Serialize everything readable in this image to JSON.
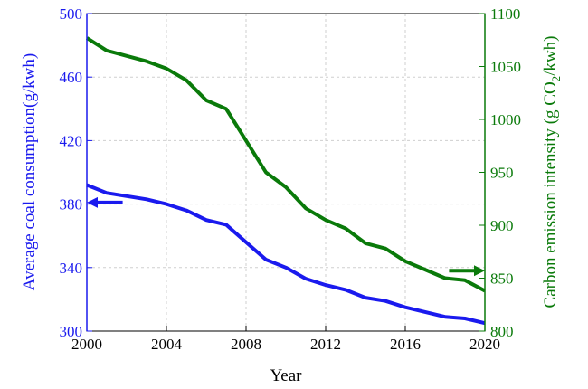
{
  "chart_data": {
    "type": "line",
    "xlabel": "Year",
    "ylabel_left": "Average coal consumption(g/kwh)",
    "ylabel_right_prefix": "Carbon emission intensity (g CO",
    "ylabel_right_sub": "2",
    "ylabel_right_suffix": "/kwh)",
    "xlim": [
      2000,
      2020
    ],
    "ylim_left": [
      300,
      500
    ],
    "ylim_right": [
      800,
      1100
    ],
    "x_ticks": [
      2000,
      2004,
      2008,
      2012,
      2016,
      2020
    ],
    "x_tick_labels": [
      "2000",
      "2004",
      "2008",
      "2012",
      "2016",
      "2020"
    ],
    "y_left_ticks": [
      300,
      340,
      380,
      420,
      460,
      500
    ],
    "y_left_tick_labels": [
      "300",
      "340",
      "380",
      "420",
      "460",
      "500"
    ],
    "y_right_ticks": [
      800,
      850,
      900,
      950,
      1000,
      1050,
      1100
    ],
    "y_right_tick_labels": [
      "800",
      "850",
      "900",
      "950",
      "1000",
      "1050",
      "1100"
    ],
    "grid": true,
    "series": [
      {
        "axis": "left",
        "color": "#1a1aee",
        "x": [
          2000,
          2001,
          2002,
          2003,
          2004,
          2005,
          2006,
          2007,
          2008,
          2009,
          2010,
          2011,
          2012,
          2013,
          2014,
          2015,
          2016,
          2017,
          2018,
          2019,
          2020
        ],
        "values": [
          392,
          387,
          385,
          383,
          380,
          376,
          370,
          367,
          356,
          345,
          340,
          333,
          329,
          326,
          321,
          319,
          315,
          312,
          309,
          308,
          305
        ]
      },
      {
        "axis": "right",
        "color": "#0a7a0a",
        "x": [
          2000,
          2001,
          2002,
          2003,
          2004,
          2005,
          2006,
          2007,
          2008,
          2009,
          2010,
          2011,
          2012,
          2013,
          2014,
          2015,
          2016,
          2017,
          2018,
          2019,
          2020
        ],
        "values": [
          1077,
          1065,
          1060,
          1055,
          1048,
          1037,
          1018,
          1010,
          980,
          950,
          936,
          916,
          905,
          897,
          883,
          878,
          866,
          858,
          850,
          848,
          838
        ]
      }
    ],
    "annotations": [
      {
        "type": "arrow",
        "direction": "left",
        "color": "#1a1aee",
        "points_to": "left axis",
        "at_x_start": 2001.8,
        "at_x_end": 2000,
        "at_value": 381,
        "axis": "left"
      },
      {
        "type": "arrow",
        "direction": "right",
        "color": "#0a7a0a",
        "points_to": "right axis",
        "at_x_start": 2018.2,
        "at_x_end": 2020,
        "at_value": 857,
        "axis": "right"
      }
    ],
    "colors": {
      "left_axis": "#1a1aee",
      "right_axis": "#0a7a0a",
      "x_axis": "#000000",
      "grid": "#cfcfcf"
    }
  }
}
